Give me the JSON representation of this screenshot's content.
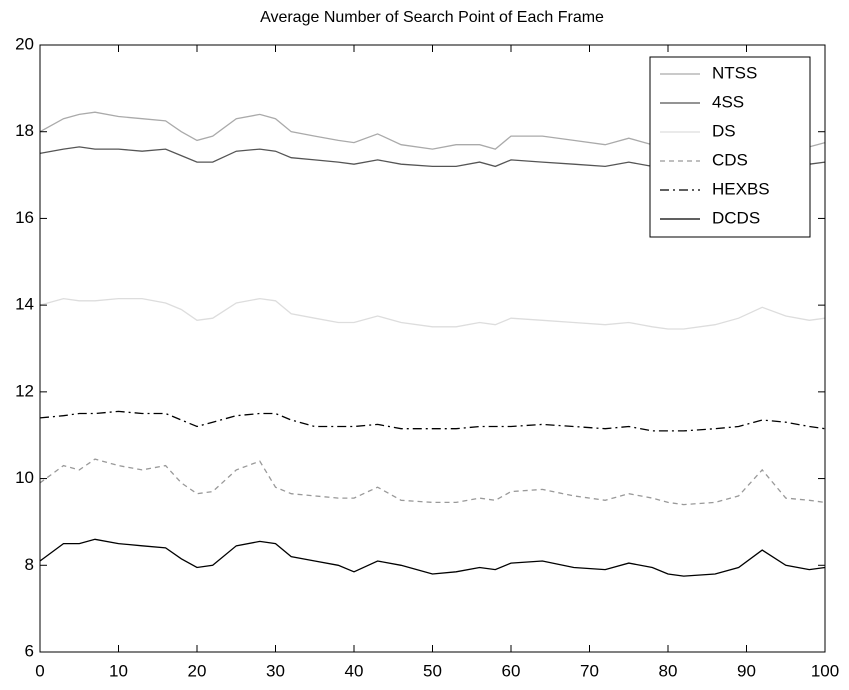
{
  "chart_data": {
    "type": "line",
    "title": "Average Number of Search Point of Each Frame",
    "x": [
      0,
      3,
      5,
      7,
      10,
      13,
      16,
      18,
      20,
      22,
      25,
      28,
      30,
      32,
      35,
      38,
      40,
      43,
      46,
      50,
      53,
      56,
      58,
      60,
      64,
      68,
      72,
      75,
      78,
      80,
      82,
      86,
      89,
      92,
      95,
      98,
      100
    ],
    "series": [
      {
        "name": "NTSS",
        "color": "#aaaaaa",
        "style": "solid",
        "values": [
          18.0,
          18.3,
          18.4,
          18.45,
          18.35,
          18.3,
          18.25,
          18.0,
          17.8,
          17.9,
          18.3,
          18.4,
          18.3,
          18.0,
          17.9,
          17.8,
          17.75,
          17.95,
          17.7,
          17.6,
          17.7,
          17.7,
          17.6,
          17.9,
          17.9,
          17.8,
          17.7,
          17.85,
          17.7,
          17.6,
          17.6,
          17.6,
          17.7,
          17.75,
          17.7,
          17.65,
          17.75
        ]
      },
      {
        "name": "4SS",
        "color": "#555555",
        "style": "solid",
        "values": [
          17.5,
          17.6,
          17.65,
          17.6,
          17.6,
          17.55,
          17.6,
          17.45,
          17.3,
          17.3,
          17.55,
          17.6,
          17.55,
          17.4,
          17.35,
          17.3,
          17.25,
          17.35,
          17.25,
          17.2,
          17.2,
          17.3,
          17.2,
          17.35,
          17.3,
          17.25,
          17.2,
          17.3,
          17.2,
          17.15,
          17.2,
          17.25,
          17.3,
          17.3,
          17.2,
          17.25,
          17.3
        ]
      },
      {
        "name": "DS",
        "color": "#dddddd",
        "style": "solid",
        "values": [
          14.0,
          14.15,
          14.1,
          14.1,
          14.15,
          14.15,
          14.05,
          13.9,
          13.65,
          13.7,
          14.05,
          14.15,
          14.1,
          13.8,
          13.7,
          13.6,
          13.6,
          13.75,
          13.6,
          13.5,
          13.5,
          13.6,
          13.55,
          13.7,
          13.65,
          13.6,
          13.55,
          13.6,
          13.5,
          13.45,
          13.45,
          13.55,
          13.7,
          13.95,
          13.75,
          13.65,
          13.7
        ]
      },
      {
        "name": "CDS",
        "color": "#999999",
        "style": "dashed",
        "values": [
          9.9,
          10.3,
          10.2,
          10.45,
          10.3,
          10.2,
          10.3,
          9.9,
          9.65,
          9.7,
          10.2,
          10.4,
          9.8,
          9.65,
          9.6,
          9.55,
          9.55,
          9.8,
          9.5,
          9.45,
          9.45,
          9.55,
          9.5,
          9.7,
          9.75,
          9.6,
          9.5,
          9.65,
          9.55,
          9.45,
          9.4,
          9.45,
          9.6,
          10.2,
          9.55,
          9.5,
          9.45
        ]
      },
      {
        "name": "HEXBS",
        "color": "#000000",
        "style": "dashdot",
        "values": [
          11.4,
          11.45,
          11.5,
          11.5,
          11.55,
          11.5,
          11.5,
          11.35,
          11.2,
          11.3,
          11.45,
          11.5,
          11.5,
          11.35,
          11.2,
          11.2,
          11.2,
          11.25,
          11.15,
          11.15,
          11.15,
          11.2,
          11.2,
          11.2,
          11.25,
          11.2,
          11.15,
          11.2,
          11.1,
          11.1,
          11.1,
          11.15,
          11.2,
          11.35,
          11.3,
          11.2,
          11.15
        ]
      },
      {
        "name": "DCDS",
        "color": "#000000",
        "style": "solid",
        "values": [
          8.1,
          8.5,
          8.5,
          8.6,
          8.5,
          8.45,
          8.4,
          8.15,
          7.95,
          8.0,
          8.45,
          8.55,
          8.5,
          8.2,
          8.1,
          8.0,
          7.85,
          8.1,
          8.0,
          7.8,
          7.85,
          7.95,
          7.9,
          8.05,
          8.1,
          7.95,
          7.9,
          8.05,
          7.95,
          7.8,
          7.75,
          7.8,
          7.95,
          8.35,
          8.0,
          7.9,
          7.95
        ]
      }
    ],
    "xlim": [
      0,
      100
    ],
    "xticks": [
      0,
      10,
      20,
      30,
      40,
      50,
      60,
      70,
      80,
      90,
      100
    ],
    "ylim": [
      6,
      20
    ],
    "yticks": [
      6,
      8,
      10,
      12,
      14,
      16,
      18,
      20
    ],
    "legend": "upper right"
  }
}
